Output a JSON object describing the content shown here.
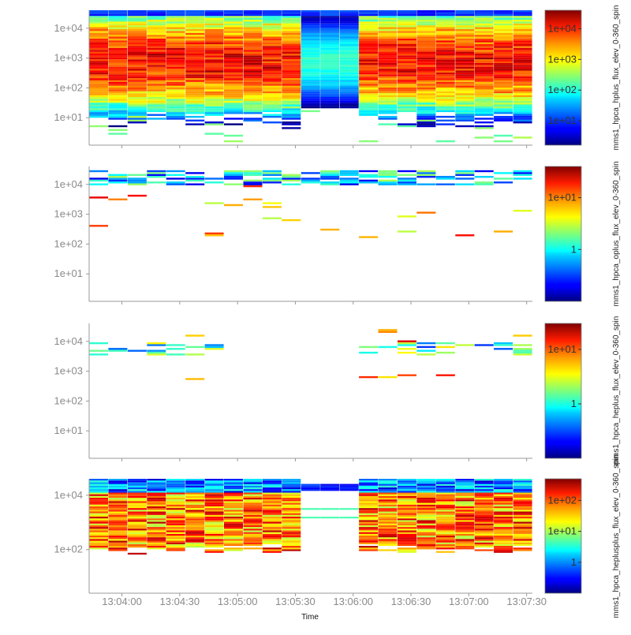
{
  "colors": {
    "axis": "#999999",
    "tick_text": "#8a8a8a"
  },
  "chart_data": {
    "type": "heatmap",
    "xlabel": "Time",
    "x_tick_labels": [
      "13:04:00",
      "13:04:30",
      "13:05:00",
      "13:05:30",
      "13:06:00",
      "13:06:30",
      "13:07:00",
      "13:07:30"
    ],
    "x_range_seconds_after_1300": [
      223,
      453
    ],
    "y_scale": "log",
    "colormap": "jet",
    "panels": [
      {
        "name": "mms1_hpca_hplus_flux_elev_0-360_spin",
        "ylim": [
          1.2,
          40000
        ],
        "y_tick_labels": [
          "1e+01",
          "1e+02",
          "1e+03",
          "1e+04"
        ],
        "y_tick_values": [
          10,
          100,
          1000,
          10000
        ],
        "colorbar_ticks": [
          "1e+01",
          "1e+02",
          "1e+03",
          "1e+04"
        ],
        "colorbar_tick_values": [
          10,
          100,
          1000,
          10000
        ],
        "zlim": [
          1.6,
          40000
        ]
      },
      {
        "name": "mms1_hpca_oplus_flux_elev_0-360_spin",
        "ylim": [
          1.2,
          40000
        ],
        "y_tick_labels": [
          "1e+01",
          "1e+02",
          "1e+03",
          "1e+04"
        ],
        "y_tick_values": [
          10,
          100,
          1000,
          10000
        ],
        "colorbar_ticks": [
          "1e+01",
          "1"
        ],
        "colorbar_tick_values": [
          10,
          1
        ],
        "zlim": [
          0.1,
          40
        ]
      },
      {
        "name": "mms1_hpca_heplus_flux_elev_0-360_spin",
        "ylim": [
          1.2,
          40000
        ],
        "y_tick_labels": [
          "1e+01",
          "1e+02",
          "1e+03",
          "1e+04"
        ],
        "y_tick_values": [
          10,
          100,
          1000,
          10000
        ],
        "colorbar_ticks": [
          "1e+01",
          "1"
        ],
        "colorbar_tick_values": [
          10,
          1
        ],
        "zlim": [
          0.1,
          30
        ]
      },
      {
        "name": "mms1_hpca_heplusplus_flux_elev_0-360_spin",
        "ylim": [
          2.5,
          40000
        ],
        "y_tick_labels": [
          "1e+02",
          "1e+04"
        ],
        "y_tick_values": [
          100,
          10000
        ],
        "colorbar_ticks": [
          "1e+02",
          "1e+01",
          "1"
        ],
        "colorbar_tick_values": [
          100,
          10,
          1
        ],
        "zlim": [
          0.1,
          500
        ]
      }
    ]
  }
}
